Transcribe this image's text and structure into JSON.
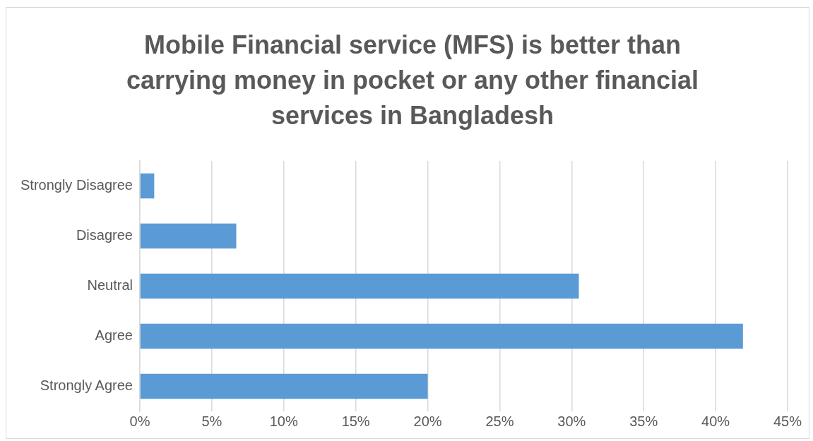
{
  "chart_data": {
    "type": "bar",
    "orientation": "horizontal",
    "title": "Mobile Financial service (MFS) is better than carrying money in pocket or any other financial services in Bangladesh",
    "categories": [
      "Strongly Disagree",
      "Disagree",
      "Neutral",
      "Agree",
      "Strongly Agree"
    ],
    "values": [
      1,
      6.7,
      30.5,
      41.9,
      20
    ],
    "color": "#5b9bd5",
    "xlim": [
      0,
      45
    ],
    "xticks": [
      {
        "value": 0,
        "label": "0%"
      },
      {
        "value": 5,
        "label": "5%"
      },
      {
        "value": 10,
        "label": "10%"
      },
      {
        "value": 15,
        "label": "15%"
      },
      {
        "value": 20,
        "label": "20%"
      },
      {
        "value": 25,
        "label": "25%"
      },
      {
        "value": 30,
        "label": "30%"
      },
      {
        "value": 35,
        "label": "35%"
      },
      {
        "value": 40,
        "label": "40%"
      },
      {
        "value": 45,
        "label": "45%"
      }
    ],
    "grid": "x",
    "legend": false
  }
}
